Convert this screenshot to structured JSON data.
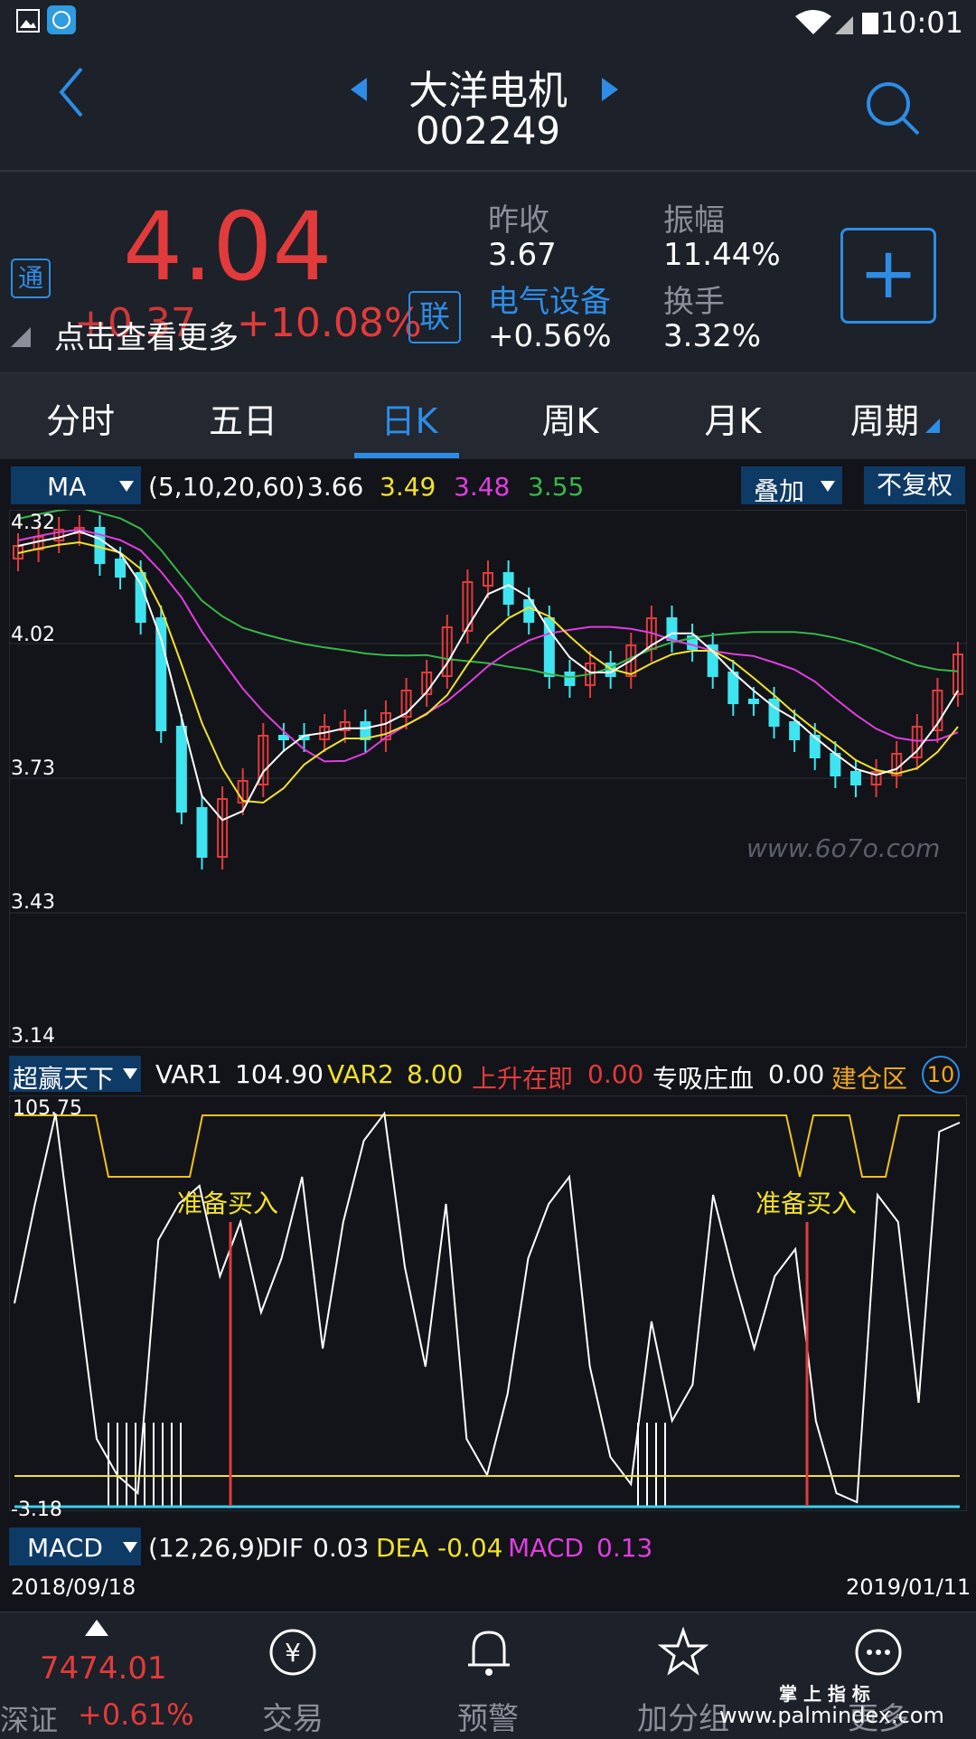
{
  "status_bar": {
    "time": "10:01"
  },
  "header": {
    "name": "大洋电机",
    "code": "002249"
  },
  "quote": {
    "price": "4.04",
    "change": "+0.37",
    "change_pct": "+10.08%",
    "tong_badge": "通",
    "lian_badge": "联",
    "more_hint": "点击查看更多",
    "prev_close_label": "昨收",
    "prev_close": "3.67",
    "amplitude_label": "振幅",
    "amplitude": "11.44%",
    "sector": "电气设备",
    "sector_change": "+0.56%",
    "turnover_label": "换手",
    "turnover": "3.32%",
    "add_button": "+"
  },
  "tabs": [
    "分时",
    "五日",
    "日K",
    "周K",
    "月K",
    "周期"
  ],
  "active_tab": 2,
  "ma_bar": {
    "selector": "MA",
    "params": "(5,10,20,60)",
    "ma5": "3.66",
    "ma10": "3.49",
    "ma20": "3.48",
    "ma60": "3.55",
    "overlay": "叠加",
    "adjust": "不复权"
  },
  "price_axis": [
    "4.32",
    "4.02",
    "3.73",
    "3.43",
    "3.14"
  ],
  "watermark": "www.6o7o.com",
  "indicator_bar": {
    "selector": "超赢天下",
    "var1_label": "VAR1",
    "var1": "104.90",
    "var2_label": "VAR2",
    "var2": "8.00",
    "rise_label": "上升在即",
    "rise": "0.00",
    "absorb_label": "专吸庄血",
    "absorb": "0.00",
    "build_label": "建仓区",
    "build_badge": "10"
  },
  "indicator_axis": {
    "top": "105.75",
    "bottom": "-3.18"
  },
  "signals": [
    "准备买入",
    "准备买入"
  ],
  "macd_bar": {
    "selector": "MACD",
    "params": "(12,26,9)",
    "dif_label": "DIF",
    "dif": "0.03",
    "dea_label": "DEA",
    "dea": "-0.04",
    "macd_label": "MACD",
    "macd": "0.13"
  },
  "dates": {
    "start": "2018/09/18",
    "end": "2019/01/11"
  },
  "bottom_nav": {
    "index_value": "7474.01",
    "index_name": "深证",
    "index_change": "+0.61%",
    "trade": "交易",
    "alert": "预警",
    "group": "加分组",
    "more": "更多",
    "brand": "掌 上 指 标",
    "url": "www.palmindex.com"
  },
  "colors": {
    "up": "#e23b3b",
    "down": "#3ee4f0",
    "ma5": "#ffffff",
    "ma10": "#f2e12a",
    "ma20": "#e03ee0",
    "ma60": "#39b54a",
    "accent": "#2d8de6"
  }
}
